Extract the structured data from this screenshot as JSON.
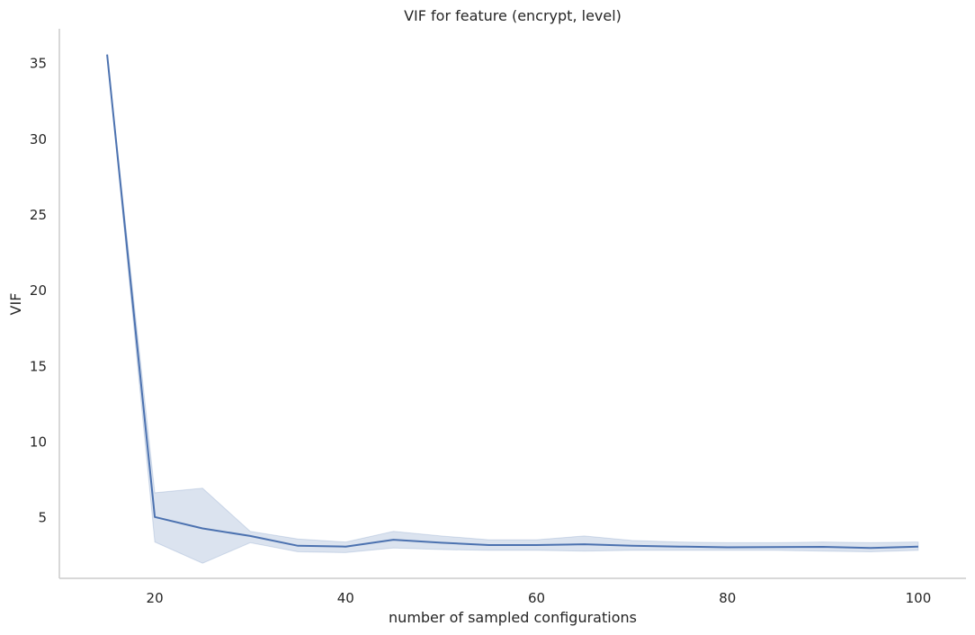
{
  "chart_data": {
    "type": "line",
    "title": "VIF for feature (encrypt, level)",
    "xlabel": "number of sampled configurations",
    "ylabel": "VIF",
    "xlim": [
      10,
      105
    ],
    "ylim": [
      1.0,
      37.3
    ],
    "xticks": [
      20,
      40,
      60,
      80,
      100
    ],
    "yticks": [
      5,
      10,
      15,
      20,
      25,
      30,
      35
    ],
    "grid": false,
    "legend": "none",
    "colors": {
      "line": "#4c72b0",
      "band": "#4c72b0",
      "axis": "#cccccc",
      "text": "#262626"
    },
    "series": [
      {
        "x": [
          15,
          20,
          25,
          30,
          35,
          40,
          45,
          50,
          55,
          60,
          65,
          70,
          75,
          80,
          85,
          90,
          95,
          100
        ],
        "y": [
          35.6,
          5.05,
          4.3,
          3.8,
          3.15,
          3.1,
          3.55,
          3.35,
          3.2,
          3.2,
          3.25,
          3.15,
          3.1,
          3.05,
          3.07,
          3.08,
          3.0,
          3.1
        ],
        "ci_low": [
          35.6,
          3.4,
          2.0,
          3.35,
          2.75,
          2.7,
          3.0,
          2.9,
          2.85,
          2.85,
          2.8,
          2.85,
          2.85,
          2.85,
          2.85,
          2.8,
          2.75,
          2.85
        ],
        "ci_high": [
          35.6,
          6.65,
          6.95,
          4.1,
          3.6,
          3.4,
          4.1,
          3.8,
          3.55,
          3.55,
          3.8,
          3.5,
          3.4,
          3.35,
          3.35,
          3.4,
          3.35,
          3.4
        ]
      }
    ]
  }
}
